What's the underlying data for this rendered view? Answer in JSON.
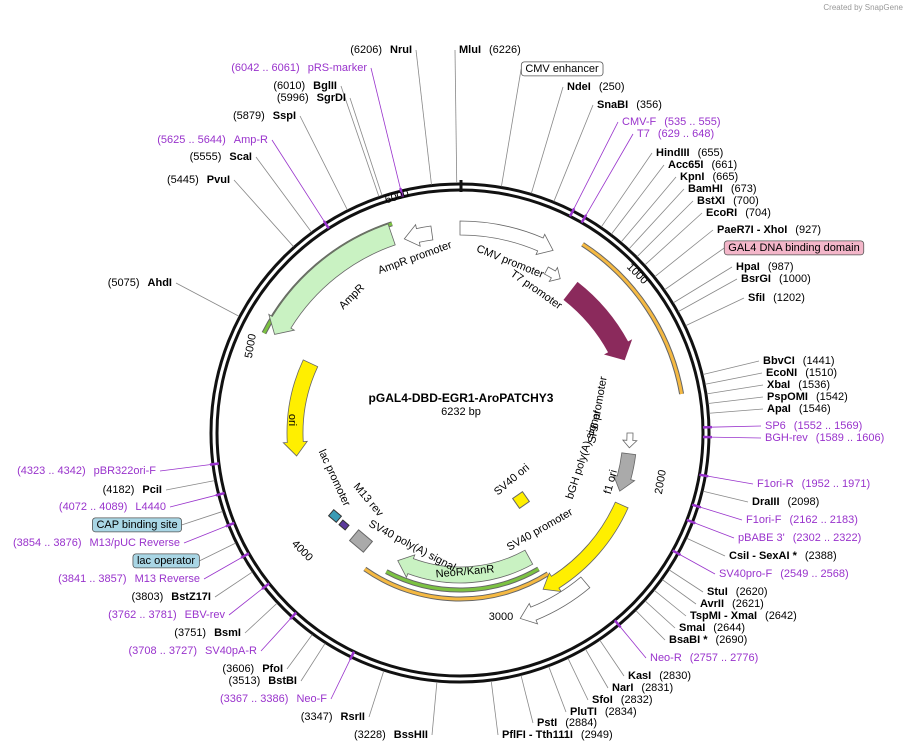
{
  "credit": "Created by SnapGene",
  "map": {
    "name": "pGAL4-DBD-EGR1-AroPATCHY3",
    "length": "6232 bp"
  },
  "sites": [
    {
      "name": "NruI",
      "position": "(6206)"
    },
    {
      "name": "MluI",
      "position": "(6226)"
    },
    {
      "name": "BglII",
      "position": "(6010)"
    },
    {
      "name": "SgrDI",
      "position": "(5996)"
    },
    {
      "name": "SspI",
      "position": "(5879)"
    },
    {
      "name": "ScaI",
      "position": "(5555)"
    },
    {
      "name": "PvuI",
      "position": "(5445)"
    },
    {
      "name": "AhdI",
      "position": "(5075)"
    },
    {
      "name": "PciI",
      "position": "(4182)"
    },
    {
      "name": "BstZ17I",
      "position": "(3803)"
    },
    {
      "name": "BsmI",
      "position": "(3751)"
    },
    {
      "name": "PfoI",
      "position": "(3606)"
    },
    {
      "name": "BstBI",
      "position": "(3513)"
    },
    {
      "name": "RsrII",
      "position": "(3347)"
    },
    {
      "name": "BssHII",
      "position": "(3228)"
    },
    {
      "name": "NdeI",
      "position": "(250)"
    },
    {
      "name": "SnaBI",
      "position": "(356)"
    },
    {
      "name": "HindIII",
      "position": "(655)"
    },
    {
      "name": "Acc65I",
      "position": "(661)"
    },
    {
      "name": "KpnI",
      "position": "(665)"
    },
    {
      "name": "BamHI",
      "position": "(673)"
    },
    {
      "name": "BstXI",
      "position": "(700)"
    },
    {
      "name": "EcoRI",
      "position": "(704)"
    },
    {
      "name": "PaeR7I - XhoI",
      "position": "(927)"
    },
    {
      "name": "HpaI",
      "position": "(987)"
    },
    {
      "name": "BsrGI",
      "position": "(1000)"
    },
    {
      "name": "SfiI",
      "position": "(1202)"
    },
    {
      "name": "BbvCI",
      "position": "(1441)"
    },
    {
      "name": "EcoNI",
      "position": "(1510)"
    },
    {
      "name": "XbaI",
      "position": "(1536)"
    },
    {
      "name": "PspOMI",
      "position": "(1542)"
    },
    {
      "name": "ApaI",
      "position": "(1546)"
    },
    {
      "name": "DraIII",
      "position": "(2098)"
    },
    {
      "name": "CsiI - SexAI *",
      "position": "(2388)"
    },
    {
      "name": "StuI",
      "position": "(2620)"
    },
    {
      "name": "AvrII",
      "position": "(2621)"
    },
    {
      "name": "TspMI - XmaI",
      "position": "(2642)"
    },
    {
      "name": "SmaI",
      "position": "(2644)"
    },
    {
      "name": "BsaBI *",
      "position": "(2690)"
    },
    {
      "name": "KasI",
      "position": "(2830)"
    },
    {
      "name": "NarI",
      "position": "(2831)"
    },
    {
      "name": "SfoI",
      "position": "(2832)"
    },
    {
      "name": "PluTI",
      "position": "(2834)"
    },
    {
      "name": "PstI",
      "position": "(2884)"
    },
    {
      "name": "PflFI - Tth111I",
      "position": "(2949)"
    }
  ],
  "primers": [
    {
      "name": "pRS-marker",
      "range": "(6042 .. 6061)"
    },
    {
      "name": "Amp-R",
      "range": "(5625 .. 5644)"
    },
    {
      "name": "pBR322ori-F",
      "range": "(4323 .. 4342)"
    },
    {
      "name": "L4440",
      "range": "(4072 .. 4089)"
    },
    {
      "name": "M13/pUC Reverse",
      "range": "(3854 .. 3876)"
    },
    {
      "name": "M13 Reverse",
      "range": "(3841 .. 3857)"
    },
    {
      "name": "EBV-rev",
      "range": "(3762 .. 3781)"
    },
    {
      "name": "SV40pA-R",
      "range": "(3708 .. 3727)"
    },
    {
      "name": "Neo-F",
      "range": "(3367 .. 3386)"
    },
    {
      "name": "CMV-F",
      "range": "(535 .. 555)"
    },
    {
      "name": "T7",
      "range": "(629 .. 648)"
    },
    {
      "name": "SP6",
      "range": "(1552 .. 1569)"
    },
    {
      "name": "BGH-rev",
      "range": "(1589 .. 1606)"
    },
    {
      "name": "F1ori-R",
      "range": "(1952 .. 1971)"
    },
    {
      "name": "F1ori-F",
      "range": "(2162 .. 2183)"
    },
    {
      "name": "pBABE 3'",
      "range": "(2302 .. 2322)"
    },
    {
      "name": "SV40pro-F",
      "range": "(2549 .. 2568)"
    },
    {
      "name": "Neo-R",
      "range": "(2757 .. 2776)"
    }
  ],
  "boxed_features": [
    "CMV enhancer",
    "GAL4 DNA binding domain",
    "CAP binding site",
    "lac operator"
  ],
  "features": [
    "AmpR promoter",
    "AmpR",
    "CMV promoter",
    "T7 promoter",
    "ori",
    "lac promoter",
    "M13 rev",
    "SV40 poly(A) signal",
    "NeoR/KanR",
    "SV40 promoter",
    "SV40 ori",
    "bGH poly(A) signal",
    "f1 ori",
    "SP6 promoter"
  ],
  "ruler": [
    "1000",
    "2000",
    "3000",
    "4000",
    "5000",
    "6000"
  ]
}
